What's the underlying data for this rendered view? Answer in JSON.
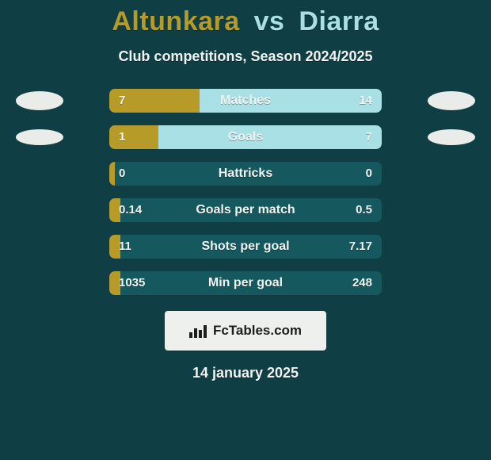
{
  "colors": {
    "bg": "#0f3f44",
    "fg": "#f1f3f1",
    "accentL": "#b69b28",
    "accentR": "#a8e0e6",
    "rowBg": "#15595e",
    "ovalFill": "#e9ece9",
    "badgeBg": "#eef0ee",
    "badgeFg": "#1d1d1d"
  },
  "title": {
    "player1": "Altunkara",
    "vs": "vs",
    "player2": "Diarra"
  },
  "subtitle": "Club competitions, Season 2024/2025",
  "rows": [
    {
      "label": "Matches",
      "left": "7",
      "right": "14",
      "leftPct": 33,
      "rightPct": 67,
      "sideIcons": "big"
    },
    {
      "label": "Goals",
      "left": "1",
      "right": "7",
      "leftPct": 18,
      "rightPct": 82,
      "sideIcons": "small"
    },
    {
      "label": "Hattricks",
      "left": "0",
      "right": "0",
      "leftPct": 2,
      "rightPct": 0
    },
    {
      "label": "Goals per match",
      "left": "0.14",
      "right": "0.5",
      "leftPct": 4,
      "rightPct": 0
    },
    {
      "label": "Shots per goal",
      "left": "11",
      "right": "7.17",
      "leftPct": 4,
      "rightPct": 0
    },
    {
      "label": "Min per goal",
      "left": "1035",
      "right": "248",
      "leftPct": 4,
      "rightPct": 0
    }
  ],
  "footer": {
    "brand": "FcTables.com",
    "date": "14 january 2025"
  },
  "layout": {
    "rowWidthPx": 344,
    "rowHeightPx": 30,
    "rowGapPx": 16,
    "titleFontPx": 34,
    "subtitleFontPx": 18,
    "rowLabelFontPx": 16,
    "rowValueFontPx": 15,
    "badgeFontPx": 17,
    "dateFontPx": 18
  }
}
